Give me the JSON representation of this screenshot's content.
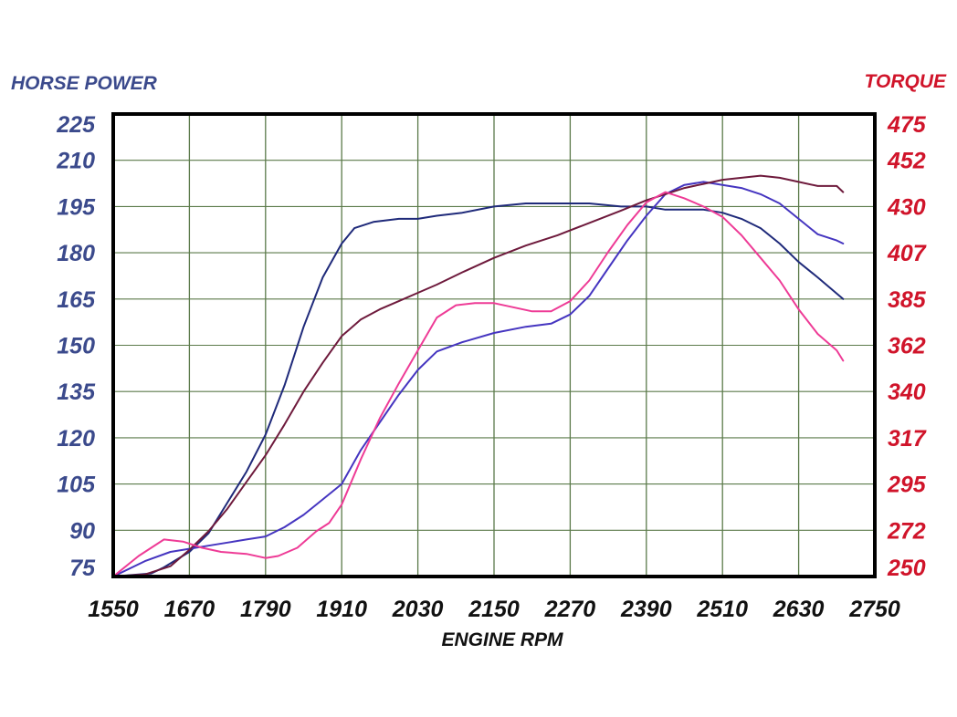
{
  "chart_data": {
    "type": "line",
    "title": "",
    "xlabel": "ENGINE RPM",
    "ylabel_left": "HORSE POWER",
    "ylabel_right": "TORQUE",
    "xlim": [
      1550,
      2750
    ],
    "ylim_left": [
      75,
      225
    ],
    "ylim_right": [
      250,
      475
    ],
    "x_ticks": [
      "1550",
      "1670",
      "1790",
      "1910",
      "2030",
      "2150",
      "2270",
      "2390",
      "2510",
      "2630",
      "2750"
    ],
    "y_ticks_left": [
      "225",
      "210",
      "195",
      "180",
      "165",
      "150",
      "135",
      "120",
      "105",
      "90",
      "75"
    ],
    "y_ticks_right": [
      "475",
      "452",
      "430",
      "407",
      "385",
      "362",
      "340",
      "317",
      "295",
      "272",
      "250"
    ],
    "grid": true,
    "colors": {
      "left_axis_text": "#3b4a8c",
      "right_axis_text": "#d0142a",
      "x_axis_text": "#111111",
      "grid": "#5b7a4a",
      "hp_curve_1": "#1f2a7a",
      "hp_curve_2": "#4535c0",
      "torque_curve_1": "#6e1a3c",
      "torque_curve_2": "#ee3b96"
    },
    "series": [
      {
        "axis": "left",
        "color": "#1f2a7a",
        "x": [
          1550,
          1610,
          1630,
          1670,
          1700,
          1730,
          1760,
          1790,
          1820,
          1850,
          1880,
          1910,
          1930,
          1960,
          2000,
          2030,
          2060,
          2100,
          2150,
          2200,
          2250,
          2300,
          2350,
          2390,
          2420,
          2450,
          2480,
          2510,
          2540,
          2570,
          2600,
          2630,
          2660,
          2700
        ],
        "y": [
          75,
          76,
          78,
          83,
          89,
          99,
          109,
          121,
          137,
          156,
          172,
          183,
          188,
          190,
          191,
          191,
          192,
          193,
          195,
          196,
          196,
          196,
          195,
          195,
          194,
          194,
          194,
          193,
          191,
          188,
          183,
          177,
          172,
          165
        ]
      },
      {
        "axis": "left",
        "color": "#4535c0",
        "x": [
          1550,
          1600,
          1640,
          1670,
          1700,
          1730,
          1760,
          1790,
          1820,
          1850,
          1880,
          1910,
          1940,
          1970,
          2000,
          2030,
          2060,
          2100,
          2150,
          2200,
          2240,
          2270,
          2300,
          2330,
          2360,
          2390,
          2420,
          2450,
          2480,
          2510,
          2540,
          2570,
          2600,
          2630,
          2660,
          2690,
          2700
        ],
        "y": [
          75,
          80,
          83,
          84,
          85,
          86,
          87,
          88,
          91,
          95,
          100,
          105,
          116,
          125,
          134,
          142,
          148,
          151,
          154,
          156,
          157,
          160,
          166,
          175,
          184,
          192,
          199,
          202,
          203,
          202,
          201,
          199,
          196,
          191,
          186,
          184,
          183
        ]
      },
      {
        "axis": "right",
        "color": "#6e1a3c",
        "x": [
          1550,
          1600,
          1640,
          1670,
          1700,
          1730,
          1760,
          1790,
          1820,
          1850,
          1880,
          1910,
          1940,
          1970,
          2000,
          2030,
          2060,
          2100,
          2150,
          2200,
          2250,
          2300,
          2350,
          2390,
          2420,
          2450,
          2480,
          2510,
          2540,
          2570,
          2600,
          2630,
          2660,
          2690,
          2700
        ],
        "y": [
          250,
          251,
          255,
          263,
          272,
          283,
          296,
          309,
          324,
          340,
          354,
          367,
          375,
          380,
          384,
          388,
          392,
          398,
          405,
          411,
          416,
          422,
          428,
          433,
          436,
          439,
          441,
          443,
          444,
          445,
          444,
          442,
          440,
          440,
          437
        ]
      },
      {
        "axis": "right",
        "color": "#ee3b96",
        "x": [
          1550,
          1590,
          1630,
          1660,
          1690,
          1720,
          1760,
          1790,
          1810,
          1840,
          1870,
          1890,
          1910,
          1940,
          1970,
          2000,
          2030,
          2060,
          2090,
          2120,
          2150,
          2180,
          2210,
          2240,
          2270,
          2300,
          2330,
          2360,
          2390,
          2420,
          2450,
          2480,
          2510,
          2540,
          2570,
          2600,
          2630,
          2660,
          2690,
          2700
        ],
        "y": [
          250,
          260,
          268,
          267,
          264,
          262,
          261,
          259,
          260,
          264,
          272,
          276,
          285,
          307,
          327,
          344,
          360,
          376,
          382,
          383,
          383,
          381,
          379,
          379,
          384,
          394,
          408,
          421,
          432,
          437,
          434,
          430,
          425,
          416,
          405,
          394,
          380,
          368,
          360,
          355
        ]
      }
    ]
  }
}
